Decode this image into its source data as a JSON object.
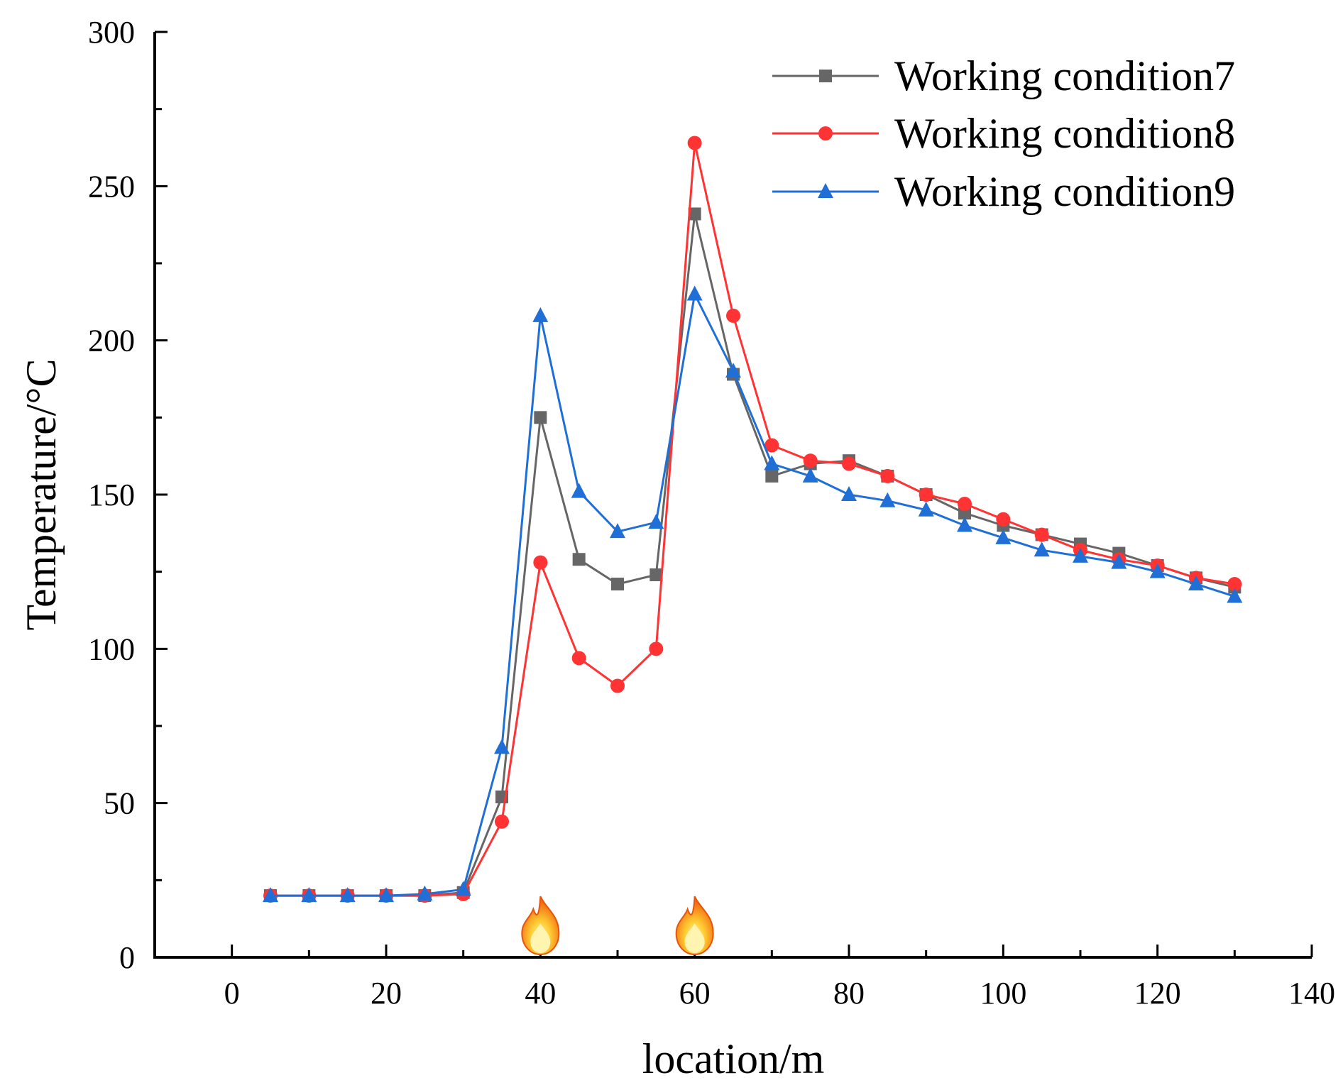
{
  "chart_data": {
    "type": "line",
    "title": "",
    "xlabel": "location/m",
    "ylabel": "Temperature/°C",
    "xlim": [
      -10,
      140
    ],
    "ylim": [
      0,
      300
    ],
    "x_ticks": [
      0,
      20,
      40,
      60,
      80,
      100,
      120,
      140
    ],
    "y_ticks": [
      0,
      50,
      100,
      150,
      200,
      250,
      300
    ],
    "grid": false,
    "legend_position": "top-right",
    "x": [
      5,
      10,
      15,
      20,
      25,
      30,
      35,
      40,
      45,
      50,
      55,
      60,
      65,
      70,
      75,
      80,
      85,
      90,
      95,
      100,
      105,
      110,
      115,
      120,
      125,
      130
    ],
    "series": [
      {
        "name": "Working condition7",
        "color": "#666666",
        "marker": "square",
        "values": [
          20,
          20,
          20,
          20,
          20,
          21,
          52,
          175,
          129,
          121,
          124,
          241,
          189,
          156,
          160,
          161,
          156,
          150,
          144,
          140,
          137,
          134,
          131,
          127,
          123,
          120
        ]
      },
      {
        "name": "Working condition8",
        "color": "#ff3333",
        "marker": "circle",
        "values": [
          20,
          20,
          20,
          20,
          20,
          20.5,
          44,
          128,
          97,
          88,
          100,
          264,
          208,
          166,
          161,
          160,
          156,
          150,
          147,
          142,
          137,
          132,
          129,
          127,
          123,
          121
        ]
      },
      {
        "name": "Working condition9",
        "color": "#1f6fd6",
        "marker": "triangle",
        "values": [
          20,
          20,
          20,
          20,
          20.5,
          22,
          68,
          208,
          151,
          138,
          141,
          215,
          190,
          160,
          156,
          150,
          148,
          145,
          140,
          136,
          132,
          130,
          128,
          125,
          121,
          117
        ]
      }
    ],
    "annotations": [
      {
        "label": "fire-icon",
        "x": 40
      },
      {
        "label": "fire-icon",
        "x": 60
      }
    ]
  }
}
